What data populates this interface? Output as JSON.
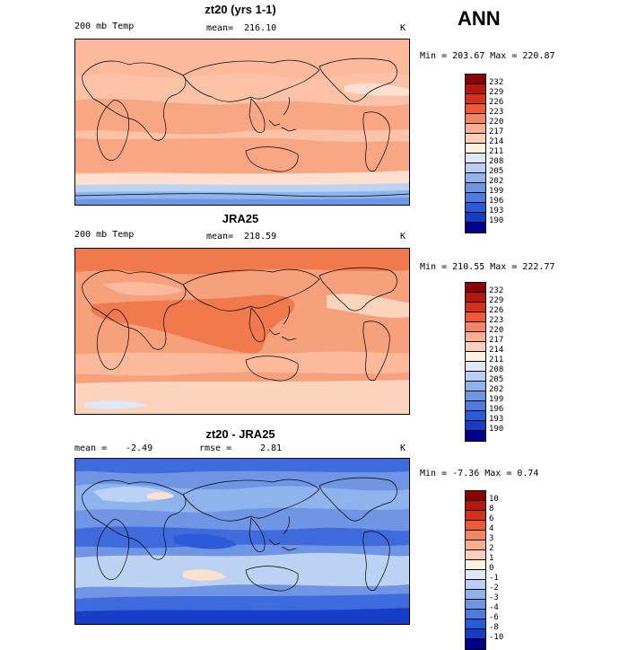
{
  "season": "ANN",
  "panels": [
    {
      "title": "zt20 (yrs 1-1)",
      "left_label": "200 mb Temp",
      "stat_label": "mean=",
      "stat_value": "216.10",
      "units": "K",
      "minmax": "Min = 203.67 Max = 220.87",
      "colorbar": {
        "labels": [
          "232",
          "229",
          "226",
          "223",
          "220",
          "217",
          "214",
          "211",
          "208",
          "205",
          "202",
          "199",
          "196",
          "193",
          "190"
        ],
        "colors": [
          "#8b0000",
          "#b2180f",
          "#d73018",
          "#ee5a34",
          "#f58460",
          "#fcae8f",
          "#fdd0b5",
          "#fff0e0",
          "#dde9f8",
          "#b7cff2",
          "#8fb3ec",
          "#6d97e4",
          "#4b7be0",
          "#2a5bd9",
          "#143ec6",
          "#00008b"
        ]
      }
    },
    {
      "title": "JRA25",
      "left_label": "200 mb Temp",
      "stat_label": "mean=",
      "stat_value": "218.59",
      "units": "K",
      "minmax": "Min = 210.55 Max = 222.77",
      "colorbar": {
        "labels": [
          "232",
          "229",
          "226",
          "223",
          "220",
          "217",
          "214",
          "211",
          "208",
          "205",
          "202",
          "199",
          "196",
          "193",
          "190"
        ],
        "colors": [
          "#8b0000",
          "#b2180f",
          "#d73018",
          "#ee5a34",
          "#f58460",
          "#fcae8f",
          "#fdd0b5",
          "#fff0e0",
          "#dde9f8",
          "#b7cff2",
          "#8fb3ec",
          "#6d97e4",
          "#4b7be0",
          "#2a5bd9",
          "#143ec6",
          "#00008b"
        ]
      }
    },
    {
      "title": "zt20 - JRA25",
      "left_label": "mean =",
      "left_value": "-2.49",
      "stat_label": "rmse =",
      "stat_value": "2.81",
      "units": "K",
      "minmax": "Min = -7.36 Max = 0.74",
      "colorbar": {
        "labels": [
          "10",
          "8",
          "6",
          "4",
          "3",
          "2",
          "1",
          "0",
          "-1",
          "-2",
          "-3",
          "-4",
          "-6",
          "-8",
          "-10"
        ],
        "colors": [
          "#8b0000",
          "#b2180f",
          "#d73018",
          "#ee5a34",
          "#f58460",
          "#fcae8f",
          "#fdd0b5",
          "#fff0e0",
          "#dde9f8",
          "#b7cff2",
          "#8fb3ec",
          "#6d97e4",
          "#4b7be0",
          "#2a5bd9",
          "#143ec6",
          "#00008b"
        ]
      }
    }
  ],
  "colors": {
    "p1_main": "#fbc2a8",
    "p1_warm": "#f9a685",
    "p1_light": "#fde0cf",
    "p2_main": "#f7a07c",
    "p2_warm": "#f07a4e",
    "p2_light": "#fcd3bd",
    "p3_main": "#6f95e4",
    "p3_deep": "#3f6bdc",
    "p3_light": "#bcd2f3"
  }
}
